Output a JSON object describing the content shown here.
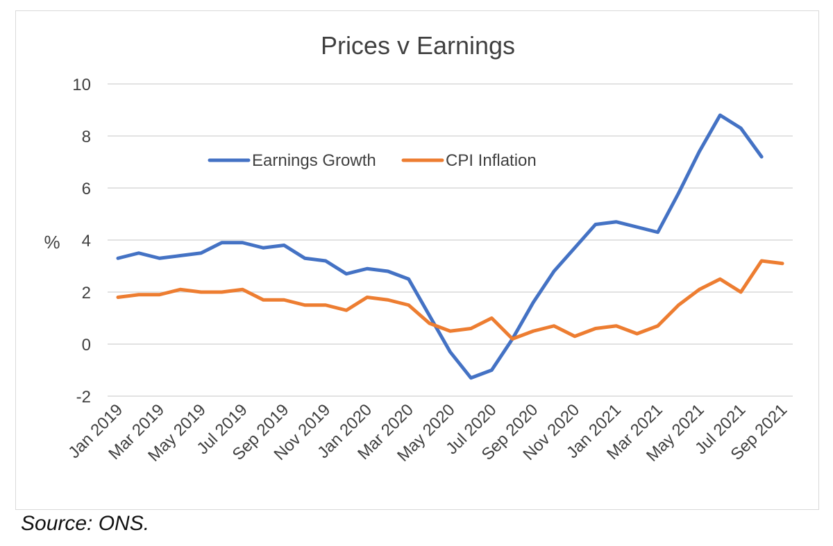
{
  "chart_data": {
    "type": "line",
    "title": "Prices v Earnings",
    "ylabel": "%",
    "xlabel": "",
    "ylim": [
      -2,
      10
    ],
    "yticks": [
      -2,
      0,
      2,
      4,
      6,
      8,
      10
    ],
    "grid": true,
    "legend_position": "top-center",
    "categories": [
      "Jan 2019",
      "Feb 2019",
      "Mar 2019",
      "Apr 2019",
      "May 2019",
      "Jun 2019",
      "Jul 2019",
      "Aug 2019",
      "Sep 2019",
      "Oct 2019",
      "Nov 2019",
      "Dec 2019",
      "Jan 2020",
      "Feb 2020",
      "Mar 2020",
      "Apr 2020",
      "May 2020",
      "Jun 2020",
      "Jul 2020",
      "Aug 2020",
      "Sep 2020",
      "Oct 2020",
      "Nov 2020",
      "Dec 2020",
      "Jan 2021",
      "Feb 2021",
      "Mar 2021",
      "Apr 2021",
      "May 2021",
      "Jun 2021",
      "Jul 2021",
      "Aug 2021",
      "Sep 2021"
    ],
    "tick_labels": [
      "Jan 2019",
      "Mar 2019",
      "May 2019",
      "Jul 2019",
      "Sep 2019",
      "Nov 2019",
      "Jan 2020",
      "Mar 2020",
      "May 2020",
      "Jul 2020",
      "Sep 2020",
      "Nov 2020",
      "Jan 2021",
      "Mar 2021",
      "May 2021",
      "Jul 2021",
      "Sep 2021"
    ],
    "series": [
      {
        "name": "Earnings Growth",
        "color": "#4472c4",
        "values": [
          3.3,
          3.5,
          3.3,
          3.4,
          3.5,
          3.9,
          3.9,
          3.7,
          3.8,
          3.3,
          3.2,
          2.7,
          2.9,
          2.8,
          2.5,
          1.1,
          -0.3,
          -1.3,
          -1.0,
          0.2,
          1.6,
          2.8,
          3.7,
          4.6,
          4.7,
          4.5,
          4.3,
          5.8,
          7.4,
          8.8,
          8.3,
          7.2,
          null
        ]
      },
      {
        "name": "CPI Inflation",
        "color": "#ed7d31",
        "values": [
          1.8,
          1.9,
          1.9,
          2.1,
          2.0,
          2.0,
          2.1,
          1.7,
          1.7,
          1.5,
          1.5,
          1.3,
          1.8,
          1.7,
          1.5,
          0.8,
          0.5,
          0.6,
          1.0,
          0.2,
          0.5,
          0.7,
          0.3,
          0.6,
          0.7,
          0.4,
          0.7,
          1.5,
          2.1,
          2.5,
          2.0,
          3.2,
          3.1
        ]
      }
    ]
  },
  "source_note": "Source: ONS."
}
